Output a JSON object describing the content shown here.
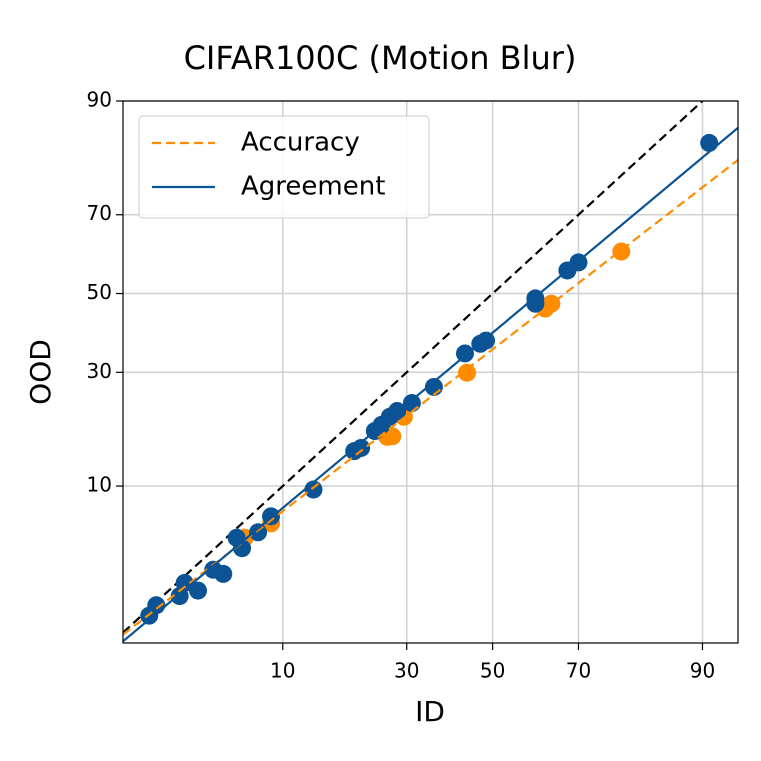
{
  "chart_data": {
    "type": "scatter",
    "title": "CIFAR100C (Motion Blur)",
    "x_label": "ID",
    "y_label": "OOD",
    "xscale": "probit",
    "yscale": "probit",
    "grid": true,
    "legend": "upper left",
    "xlim": [
      1.2,
      93.3
    ],
    "ylim": [
      1,
      90
    ],
    "xticks": [
      10,
      30,
      50,
      70,
      90
    ],
    "yticks": [
      10,
      30,
      50,
      70,
      90
    ],
    "series": [
      {
        "style": "dashed",
        "color": "#000000",
        "x": [
          1.2,
          90
        ],
        "values": [
          1.2,
          90
        ]
      },
      {
        "style": "points",
        "color": "#ff8c00",
        "x": [
          6.5,
          8.8,
          26,
          27,
          29.4,
          43.8,
          62.6,
          64,
          78.4
        ],
        "values": [
          5.2,
          6.3,
          17,
          17.1,
          20.6,
          29.9,
          46,
          47.3,
          61
        ]
      },
      {
        "style": "points",
        "color": "#0b5394",
        "x": [
          1.8,
          2.0,
          2.8,
          3.0,
          3.6,
          4.4,
          5.0,
          5.9,
          6.3,
          7.6,
          8.8,
          13.7,
          19.9,
          21.1,
          23.6,
          24.9,
          26.5,
          28,
          31.1,
          36,
          43.3,
          47,
          48.4,
          60.3,
          60.3,
          67.6,
          70,
          90.7
        ],
        "values": [
          1.6,
          1.9,
          2.2,
          2.7,
          2.4,
          3.3,
          3.1,
          5.2,
          4.5,
          5.6,
          6.9,
          9.6,
          14.7,
          15.2,
          18,
          19.1,
          20.6,
          21.7,
          23.3,
          26.7,
          34.5,
          36.9,
          37.7,
          48.7,
          47.3,
          56.1,
          58.2,
          84.2
        ]
      },
      {
        "name": "Accuracy",
        "style": "dashed",
        "color": "#ff8c00",
        "x": [
          1.2,
          93.3
        ],
        "values": [
          1.16,
          81.3
        ]
      },
      {
        "name": "Agreement",
        "style": "solid",
        "color": "#0b5394",
        "x": [
          1.2,
          93.3
        ],
        "values": [
          1.03,
          86.5
        ]
      }
    ]
  }
}
